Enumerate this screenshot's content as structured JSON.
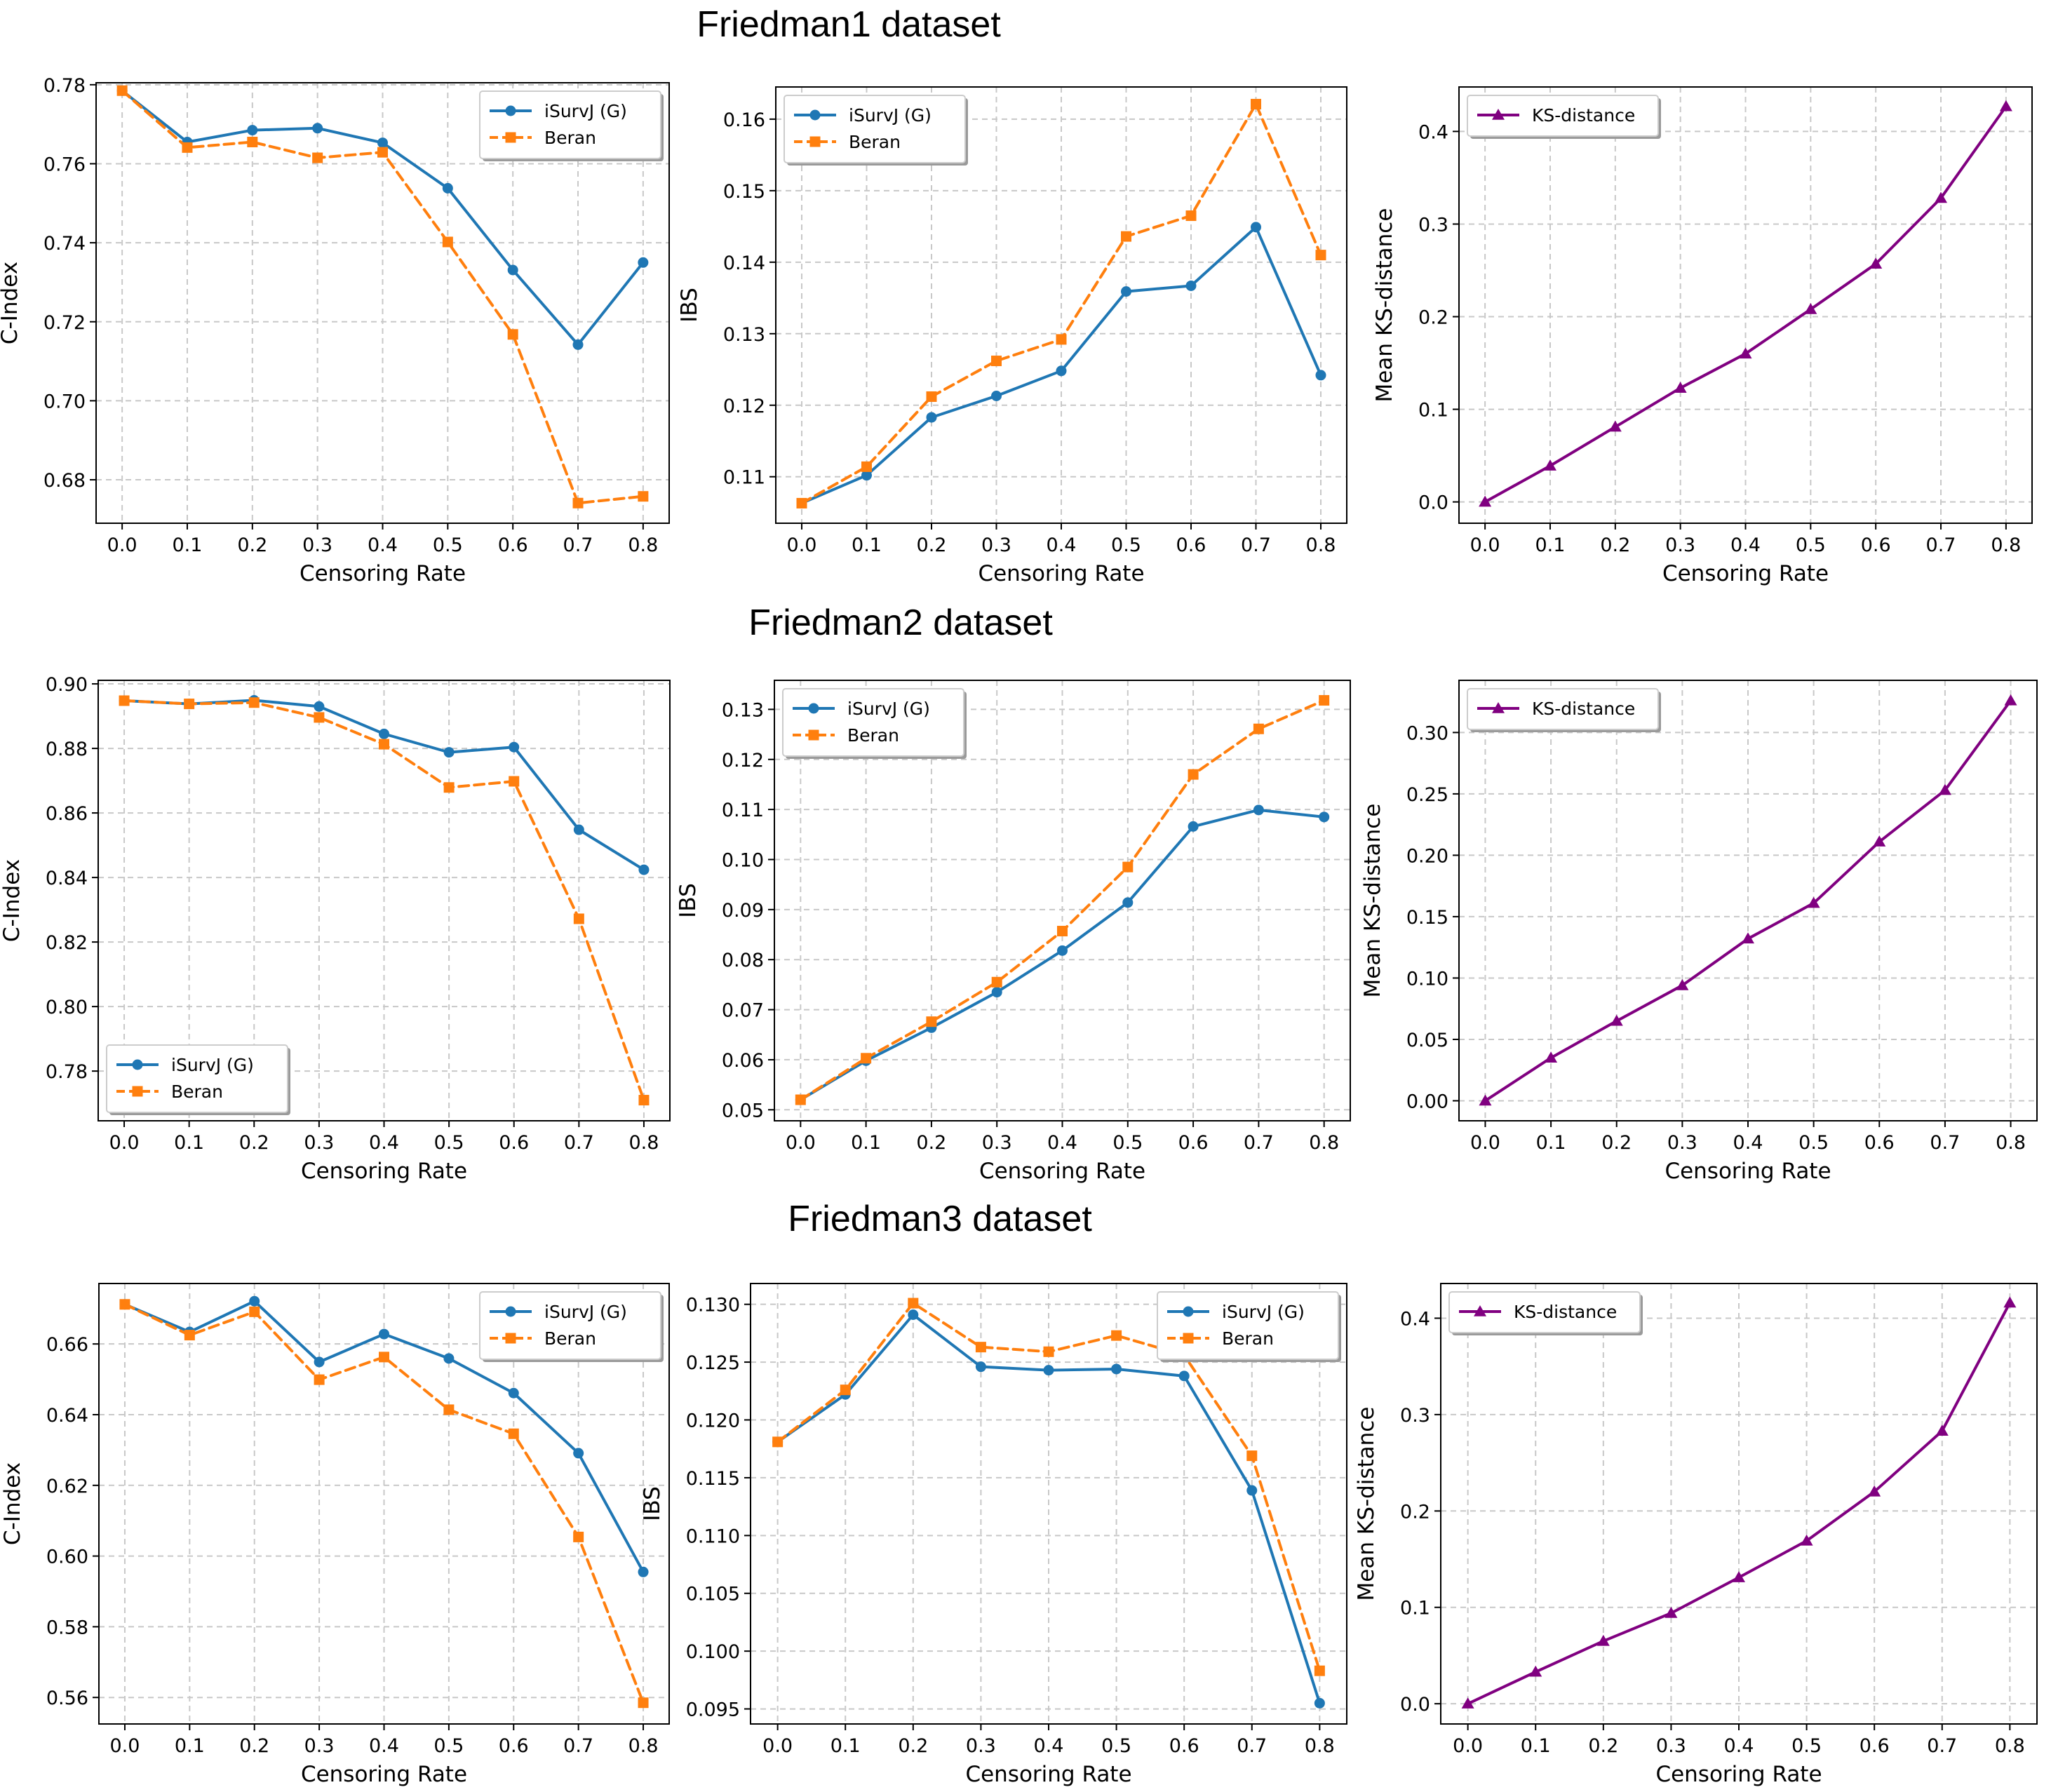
{
  "figure": {
    "row_titles": [
      "Friedman1 dataset",
      "Friedman2 dataset",
      "Friedman3 dataset"
    ]
  },
  "chart_data": [
    {
      "type": "line",
      "row": 0,
      "col": 0,
      "x": [
        0.0,
        0.1,
        0.2,
        0.3,
        0.4,
        0.5,
        0.6,
        0.7,
        0.8
      ],
      "xticks": [
        "0.0",
        "0.1",
        "0.2",
        "0.3",
        "0.4",
        "0.5",
        "0.6",
        "0.7",
        "0.8"
      ],
      "xlim": [
        -0.04,
        0.84
      ],
      "ylim": [
        0.669,
        0.7805
      ],
      "yticks": [
        0.68,
        0.7,
        0.72,
        0.74,
        0.76,
        0.78
      ],
      "ytick_labels": [
        "0.68",
        "0.70",
        "0.72",
        "0.74",
        "0.76",
        "0.78"
      ],
      "xlabel": "Censoring Rate",
      "ylabel": "C-Index",
      "legend_loc": "top-right",
      "grid": true,
      "series": [
        {
          "name": "iSurvJ (G)",
          "color": "#1f77b4",
          "marker": "circle",
          "dashed": false,
          "values": [
            0.7785,
            0.7655,
            0.7685,
            0.769,
            0.7653,
            0.7538,
            0.7331,
            0.7142,
            0.735
          ]
        },
        {
          "name": "Beran",
          "color": "#ff7f0e",
          "marker": "square",
          "dashed": true,
          "values": [
            0.7785,
            0.7641,
            0.7655,
            0.7615,
            0.7629,
            0.7402,
            0.7168,
            0.6741,
            0.6758
          ]
        }
      ]
    },
    {
      "type": "line",
      "row": 0,
      "col": 1,
      "x": [
        0.0,
        0.1,
        0.2,
        0.3,
        0.4,
        0.5,
        0.6,
        0.7,
        0.8
      ],
      "xticks": [
        "0.0",
        "0.1",
        "0.2",
        "0.3",
        "0.4",
        "0.5",
        "0.6",
        "0.7",
        "0.8"
      ],
      "xlim": [
        -0.04,
        0.84
      ],
      "ylim": [
        0.1035,
        0.1645
      ],
      "yticks": [
        0.11,
        0.12,
        0.13,
        0.14,
        0.15,
        0.16
      ],
      "ytick_labels": [
        "0.11",
        "0.12",
        "0.13",
        "0.14",
        "0.15",
        "0.16"
      ],
      "xlabel": "Censoring Rate",
      "ylabel": "IBS",
      "legend_loc": "top-left",
      "grid": true,
      "series": [
        {
          "name": "iSurvJ (G)",
          "color": "#1f77b4",
          "marker": "circle",
          "dashed": false,
          "values": [
            0.1063,
            0.1102,
            0.1183,
            0.1213,
            0.1248,
            0.1359,
            0.1367,
            0.1449,
            0.1242
          ]
        },
        {
          "name": "Beran",
          "color": "#ff7f0e",
          "marker": "square",
          "dashed": true,
          "values": [
            0.1063,
            0.1114,
            0.1212,
            0.1262,
            0.1292,
            0.1436,
            0.1465,
            0.1621,
            0.141
          ]
        }
      ]
    },
    {
      "type": "line",
      "row": 0,
      "col": 2,
      "x": [
        0.0,
        0.1,
        0.2,
        0.3,
        0.4,
        0.5,
        0.6,
        0.7,
        0.8
      ],
      "xticks": [
        "0.0",
        "0.1",
        "0.2",
        "0.3",
        "0.4",
        "0.5",
        "0.6",
        "0.7",
        "0.8"
      ],
      "xlim": [
        -0.04,
        0.84
      ],
      "ylim": [
        -0.023,
        0.448
      ],
      "yticks": [
        0.0,
        0.1,
        0.2,
        0.3,
        0.4
      ],
      "ytick_labels": [
        "0.0",
        "0.1",
        "0.2",
        "0.3",
        "0.4"
      ],
      "xlabel": "Censoring Rate",
      "ylabel": "Mean KS-distance",
      "legend_loc": "top-left",
      "grid": true,
      "series": [
        {
          "name": "KS-distance",
          "color": "#800080",
          "marker": "triangle",
          "dashed": false,
          "values": [
            0.0,
            0.039,
            0.081,
            0.123,
            0.16,
            0.208,
            0.257,
            0.328,
            0.427
          ]
        }
      ]
    },
    {
      "type": "line",
      "row": 1,
      "col": 0,
      "x": [
        0.0,
        0.1,
        0.2,
        0.3,
        0.4,
        0.5,
        0.6,
        0.7,
        0.8
      ],
      "xticks": [
        "0.0",
        "0.1",
        "0.2",
        "0.3",
        "0.4",
        "0.5",
        "0.6",
        "0.7",
        "0.8"
      ],
      "xlim": [
        -0.04,
        0.84
      ],
      "ylim": [
        0.7646,
        0.9011
      ],
      "yticks": [
        0.78,
        0.8,
        0.82,
        0.84,
        0.86,
        0.88,
        0.9
      ],
      "ytick_labels": [
        "0.78",
        "0.80",
        "0.82",
        "0.84",
        "0.86",
        "0.88",
        "0.90"
      ],
      "xlabel": "Censoring Rate",
      "ylabel": "C-Index",
      "legend_loc": "bottom-left",
      "grid": true,
      "series": [
        {
          "name": "iSurvJ (G)",
          "color": "#1f77b4",
          "marker": "circle",
          "dashed": false,
          "values": [
            0.8948,
            0.8938,
            0.8949,
            0.893,
            0.8845,
            0.8788,
            0.8804,
            0.8548,
            0.8424
          ]
        },
        {
          "name": "Beran",
          "color": "#ff7f0e",
          "marker": "square",
          "dashed": true,
          "values": [
            0.8948,
            0.8938,
            0.8942,
            0.8896,
            0.8813,
            0.8679,
            0.8698,
            0.8272,
            0.771
          ]
        }
      ]
    },
    {
      "type": "line",
      "row": 1,
      "col": 1,
      "x": [
        0.0,
        0.1,
        0.2,
        0.3,
        0.4,
        0.5,
        0.6,
        0.7,
        0.8
      ],
      "xticks": [
        "0.0",
        "0.1",
        "0.2",
        "0.3",
        "0.4",
        "0.5",
        "0.6",
        "0.7",
        "0.8"
      ],
      "xlim": [
        -0.04,
        0.84
      ],
      "ylim": [
        0.0478,
        0.1358
      ],
      "yticks": [
        0.05,
        0.06,
        0.07,
        0.08,
        0.09,
        0.1,
        0.11,
        0.12,
        0.13
      ],
      "ytick_labels": [
        "0.05",
        "0.06",
        "0.07",
        "0.08",
        "0.09",
        "0.10",
        "0.11",
        "0.12",
        "0.13"
      ],
      "xlabel": "Censoring Rate",
      "ylabel": "IBS",
      "legend_loc": "top-left",
      "grid": true,
      "series": [
        {
          "name": "iSurvJ (G)",
          "color": "#1f77b4",
          "marker": "circle",
          "dashed": false,
          "values": [
            0.052,
            0.0598,
            0.0664,
            0.0735,
            0.0818,
            0.0914,
            0.1066,
            0.1099,
            0.1085
          ]
        },
        {
          "name": "Beran",
          "color": "#ff7f0e",
          "marker": "square",
          "dashed": true,
          "values": [
            0.052,
            0.0603,
            0.0676,
            0.0755,
            0.0857,
            0.0985,
            0.117,
            0.1261,
            0.1318
          ]
        }
      ]
    },
    {
      "type": "line",
      "row": 1,
      "col": 2,
      "x": [
        0.0,
        0.1,
        0.2,
        0.3,
        0.4,
        0.5,
        0.6,
        0.7,
        0.8
      ],
      "xticks": [
        "0.0",
        "0.1",
        "0.2",
        "0.3",
        "0.4",
        "0.5",
        "0.6",
        "0.7",
        "0.8"
      ],
      "xlim": [
        -0.04,
        0.84
      ],
      "ylim": [
        -0.0163,
        0.3425
      ],
      "yticks": [
        0.0,
        0.05,
        0.1,
        0.15,
        0.2,
        0.25,
        0.3
      ],
      "ytick_labels": [
        "0.00",
        "0.05",
        "0.10",
        "0.15",
        "0.20",
        "0.25",
        "0.30"
      ],
      "xlabel": "Censoring Rate",
      "ylabel": "Mean KS-distance",
      "legend_loc": "top-left",
      "grid": true,
      "series": [
        {
          "name": "KS-distance",
          "color": "#800080",
          "marker": "triangle",
          "dashed": false,
          "values": [
            0.0,
            0.035,
            0.065,
            0.094,
            0.132,
            0.161,
            0.211,
            0.253,
            0.326
          ]
        }
      ]
    },
    {
      "type": "line",
      "row": 2,
      "col": 0,
      "x": [
        0.0,
        0.1,
        0.2,
        0.3,
        0.4,
        0.5,
        0.6,
        0.7,
        0.8
      ],
      "xticks": [
        "0.0",
        "0.1",
        "0.2",
        "0.3",
        "0.4",
        "0.5",
        "0.6",
        "0.7",
        "0.8"
      ],
      "xlim": [
        -0.04,
        0.84
      ],
      "ylim": [
        0.5525,
        0.6771
      ],
      "yticks": [
        0.56,
        0.58,
        0.6,
        0.62,
        0.64,
        0.66
      ],
      "ytick_labels": [
        "0.56",
        "0.58",
        "0.60",
        "0.62",
        "0.64",
        "0.66"
      ],
      "xlabel": "Censoring Rate",
      "ylabel": "C-Index",
      "legend_loc": "top-right",
      "grid": true,
      "series": [
        {
          "name": "iSurvJ (G)",
          "color": "#1f77b4",
          "marker": "circle",
          "dashed": false,
          "values": [
            0.6712,
            0.6634,
            0.6721,
            0.6549,
            0.6628,
            0.6559,
            0.6461,
            0.6291,
            0.5955
          ]
        },
        {
          "name": "Beran",
          "color": "#ff7f0e",
          "marker": "square",
          "dashed": true,
          "values": [
            0.6712,
            0.6625,
            0.6691,
            0.6499,
            0.6563,
            0.6414,
            0.6346,
            0.6054,
            0.5585
          ]
        }
      ]
    },
    {
      "type": "line",
      "row": 2,
      "col": 1,
      "x": [
        0.0,
        0.1,
        0.2,
        0.3,
        0.4,
        0.5,
        0.6,
        0.7,
        0.8
      ],
      "xticks": [
        "0.0",
        "0.1",
        "0.2",
        "0.3",
        "0.4",
        "0.5",
        "0.6",
        "0.7",
        "0.8"
      ],
      "xlim": [
        -0.04,
        0.84
      ],
      "ylim": [
        0.0937,
        0.1318
      ],
      "yticks": [
        0.095,
        0.1,
        0.105,
        0.11,
        0.115,
        0.12,
        0.125,
        0.13
      ],
      "ytick_labels": [
        "0.095",
        "0.100",
        "0.105",
        "0.110",
        "0.115",
        "0.120",
        "0.125",
        "0.130"
      ],
      "xlabel": "Censoring Rate",
      "ylabel": "IBS",
      "legend_loc": "top-right",
      "grid": true,
      "series": [
        {
          "name": "iSurvJ (G)",
          "color": "#1f77b4",
          "marker": "circle",
          "dashed": false,
          "values": [
            0.1181,
            0.1222,
            0.1291,
            0.1246,
            0.1243,
            0.1244,
            0.1238,
            0.1139,
            0.0955
          ]
        },
        {
          "name": "Beran",
          "color": "#ff7f0e",
          "marker": "square",
          "dashed": true,
          "values": [
            0.1181,
            0.1226,
            0.1301,
            0.1263,
            0.1259,
            0.1273,
            0.1256,
            0.1169,
            0.0983
          ]
        }
      ]
    },
    {
      "type": "line",
      "row": 2,
      "col": 2,
      "x": [
        0.0,
        0.1,
        0.2,
        0.3,
        0.4,
        0.5,
        0.6,
        0.7,
        0.8
      ],
      "xticks": [
        "0.0",
        "0.1",
        "0.2",
        "0.3",
        "0.4",
        "0.5",
        "0.6",
        "0.7",
        "0.8"
      ],
      "xlim": [
        -0.04,
        0.84
      ],
      "ylim": [
        -0.021,
        0.436
      ],
      "yticks": [
        0.0,
        0.1,
        0.2,
        0.3,
        0.4
      ],
      "ytick_labels": [
        "0.0",
        "0.1",
        "0.2",
        "0.3",
        "0.4"
      ],
      "xlabel": "Censoring Rate",
      "ylabel": "Mean KS-distance",
      "legend_loc": "top-left",
      "grid": true,
      "series": [
        {
          "name": "KS-distance",
          "color": "#800080",
          "marker": "triangle",
          "dashed": false,
          "values": [
            0.0,
            0.033,
            0.065,
            0.094,
            0.131,
            0.169,
            0.22,
            0.283,
            0.416
          ]
        }
      ]
    }
  ]
}
